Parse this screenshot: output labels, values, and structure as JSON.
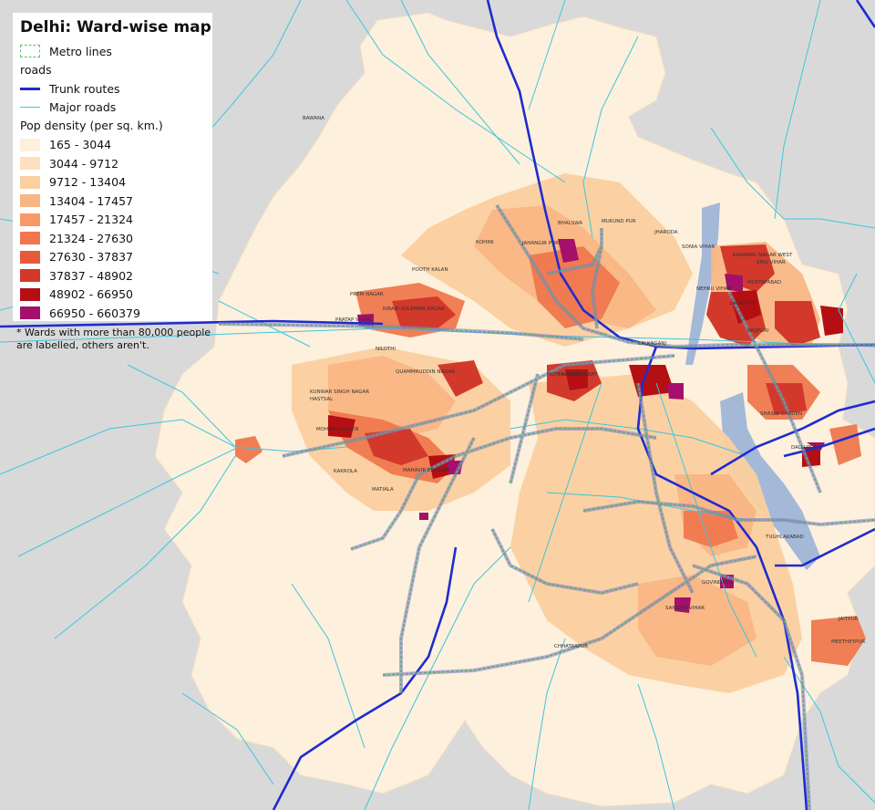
{
  "title": "Delhi: Ward-wise map",
  "legend": {
    "metro": "Metro lines",
    "roads_header": "roads",
    "trunk": "Trunk routes",
    "major": "Major roads",
    "density_header": "Pop density (per sq. km.)",
    "classes": [
      {
        "label": "165 - 3044",
        "color": "#fdf0dc"
      },
      {
        "label": "3044 - 9712",
        "color": "#fce0c0"
      },
      {
        "label": "9712 - 13404",
        "color": "#fbcf9f"
      },
      {
        "label": "13404 - 17457",
        "color": "#f9b685"
      },
      {
        "label": "17457 - 21324",
        "color": "#f79a67"
      },
      {
        "label": "21324 - 27630",
        "color": "#f0784e"
      },
      {
        "label": "27630 - 37837",
        "color": "#e65a3a"
      },
      {
        "label": "37837 - 48902",
        "color": "#d2392b"
      },
      {
        "label": "48902 - 66950",
        "color": "#b40f12"
      },
      {
        "label": "66950 - 660379",
        "color": "#a4106b"
      }
    ]
  },
  "note": "* Wards with more than 80,000 people are labelled, others aren't.",
  "colors": {
    "background": "#d9d9d9",
    "river": "#a4b8d8",
    "trunk": "#1f2bd0",
    "major": "#3cc7de",
    "metro": "#56b656",
    "metro_glow": "#8a7ad8"
  },
  "ward_labels": [
    "BAWANA",
    "BHALSWA",
    "MUKUND PUR",
    "JHARODA",
    "SONIA VIHAR",
    "KARAWAL NAGAR WEST",
    "SHIV VIHAR",
    "ROHINI",
    "JAHANGIR PURI",
    "POOTH KALAN",
    "PREM NAGAR",
    "KIRARI SULEMAN NAGAR",
    "PRATAP VIHAR",
    "NEHRU VIHAR",
    "SADATPUR",
    "MUSTAFABAD",
    "BRIJPURI",
    "NILOTHI",
    "QUAMMRUDDIN NAGAR",
    "KUNWAR SINGH NAGAR",
    "HASTSAL",
    "MOHAN GARDEN",
    "KAKROLA",
    "MATIALA",
    "MAHAVIR ENCLAVE",
    "ANAND PARBAT",
    "LALKAGANJ",
    "MOTI NAGAR",
    "SHASHI GARDEN",
    "DALLUPURA",
    "CHHATARPUR",
    "JAITPUR",
    "MEETHEYPUR",
    "SANGAM VIHAR",
    "GOVINDPURI",
    "TUGHLAKABAD"
  ]
}
